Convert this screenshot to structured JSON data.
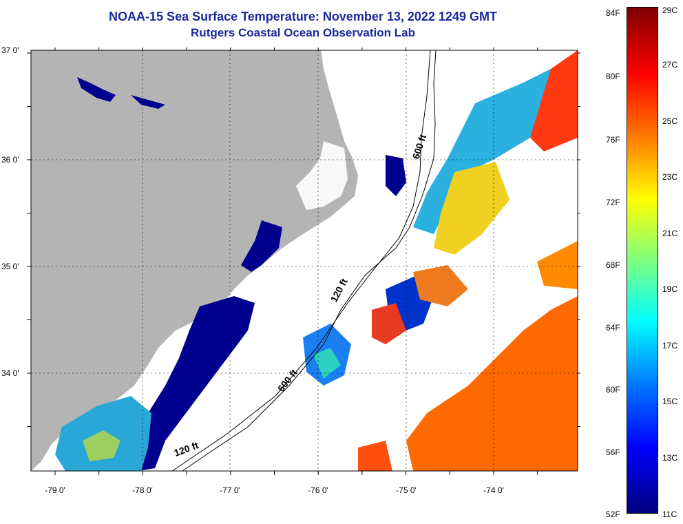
{
  "title": {
    "line1": "NOAA-15 Sea Surface Temperature:  November 13, 2022 1249 GMT",
    "line2": "Rutgers Coastal Ocean Observation Lab"
  },
  "axes": {
    "lat_ticks": [
      "37 0'",
      "36 0'",
      "35 0'",
      "34 0'"
    ],
    "lon_ticks": [
      "-79 0'",
      "-78 0'",
      "-77 0'",
      "-76 0'",
      "-75 0'",
      "-74 0'"
    ]
  },
  "contours": {
    "labels": [
      "600 ft",
      "120 ft",
      "600 ft",
      "120 ft"
    ]
  },
  "colorbar": {
    "fahrenheit": [
      "84F",
      "80F",
      "76F",
      "72F",
      "68F",
      "64F",
      "60F",
      "56F",
      "52F"
    ],
    "celsius": [
      "29C",
      "27C",
      "25C",
      "23C",
      "21C",
      "19C",
      "17C",
      "15C",
      "13C",
      "11C"
    ]
  },
  "colors": {
    "land": "#b4b4b4",
    "cloud": "#ffffff",
    "cold": "#00008f",
    "warm": "#ff6a00",
    "title": "#1a2a9a"
  }
}
